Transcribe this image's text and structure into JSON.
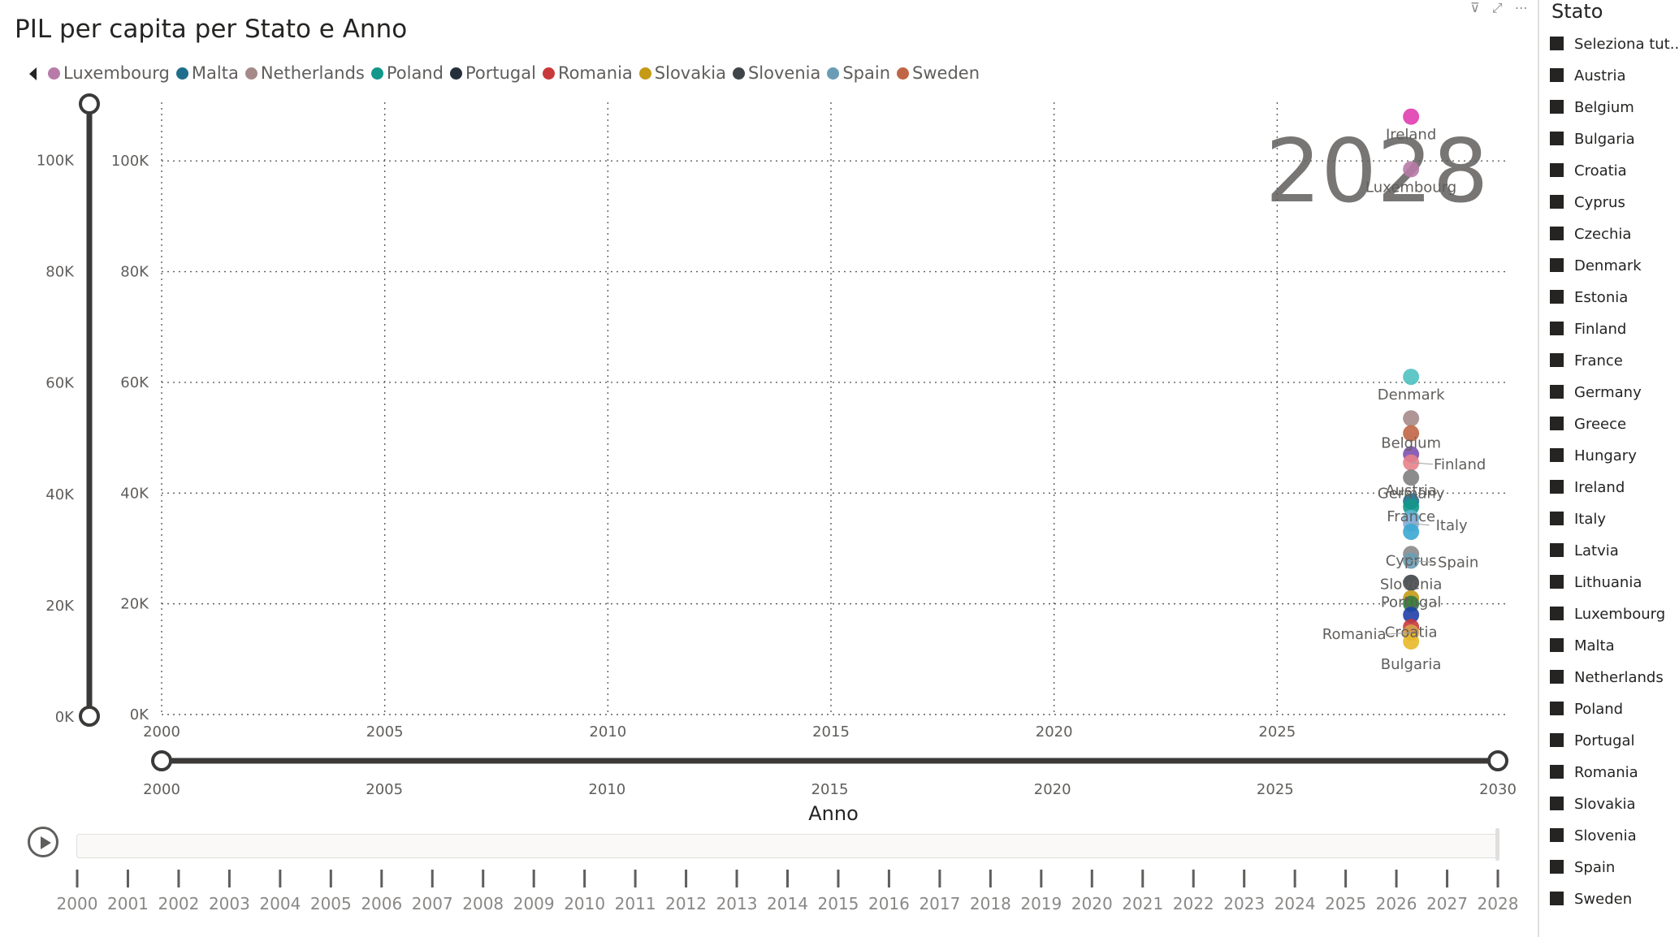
{
  "title": "PIL per capita per Stato e Anno",
  "header_icons": [
    "filter-icon",
    "focus-mode-icon",
    "more-options-icon"
  ],
  "legend": {
    "items": [
      {
        "label": "Luxembourg",
        "color": "#B87BA8"
      },
      {
        "label": "Malta",
        "color": "#1F6E8C"
      },
      {
        "label": "Netherlands",
        "color": "#A68A8A"
      },
      {
        "label": "Poland",
        "color": "#12978A"
      },
      {
        "label": "Portugal",
        "color": "#252F3A"
      },
      {
        "label": "Romania",
        "color": "#C8393C"
      },
      {
        "label": "Slovakia",
        "color": "#C49A16"
      },
      {
        "label": "Slovenia",
        "color": "#3E4449"
      },
      {
        "label": "Spain",
        "color": "#6A9DB5"
      },
      {
        "label": "Sweden",
        "color": "#C06646"
      }
    ]
  },
  "play_axis": {
    "current_year_label": "2028",
    "years": [
      "2000",
      "2001",
      "2002",
      "2003",
      "2004",
      "2005",
      "2006",
      "2007",
      "2008",
      "2009",
      "2010",
      "2011",
      "2012",
      "2013",
      "2014",
      "2015",
      "2016",
      "2017",
      "2018",
      "2019",
      "2020",
      "2021",
      "2022",
      "2023",
      "2024",
      "2025",
      "2026",
      "2027",
      "2028"
    ]
  },
  "y_range_slider": {
    "ticks": [
      "100K",
      "80K",
      "60K",
      "40K",
      "20K",
      "0K"
    ],
    "min": 0,
    "max": 110000
  },
  "x_range_slider": {
    "ticks": [
      "2000",
      "2005",
      "2010",
      "2015",
      "2020",
      "2025",
      "2030"
    ],
    "min": 2000,
    "max": 2030
  },
  "slicer": {
    "title": "Stato",
    "items": [
      "Seleziona tut...",
      "Austria",
      "Belgium",
      "Bulgaria",
      "Croatia",
      "Cyprus",
      "Czechia",
      "Denmark",
      "Estonia",
      "Finland",
      "France",
      "Germany",
      "Greece",
      "Hungary",
      "Ireland",
      "Italy",
      "Latvia",
      "Lithuania",
      "Luxembourg",
      "Malta",
      "Netherlands",
      "Poland",
      "Portugal",
      "Romania",
      "Slovakia",
      "Slovenia",
      "Spain",
      "Sweden"
    ]
  },
  "chart_data": {
    "type": "scatter",
    "title": "PIL per capita per Stato e Anno",
    "xlabel": "Anno",
    "ylabel": "",
    "xlim": [
      2000,
      2030
    ],
    "ylim": [
      0,
      110000
    ],
    "x_ticks": [
      "2000",
      "2005",
      "2010",
      "2015",
      "2020",
      "2025"
    ],
    "y_ticks": [
      "0K",
      "20K",
      "40K",
      "60K",
      "80K",
      "100K"
    ],
    "grid": true,
    "legend_position": "top-left",
    "points": [
      {
        "label": "Ireland",
        "x": 2028,
        "y": 108000,
        "color": "#E03DAF"
      },
      {
        "label": "Luxembourg",
        "x": 2028,
        "y": 98500,
        "color": "#B87BA8"
      },
      {
        "label": "Denmark",
        "x": 2028,
        "y": 61000,
        "color": "#4FC1C1"
      },
      {
        "label": "",
        "x": 2028,
        "y": 53500,
        "color": "#A68A8A"
      },
      {
        "label": "Belgium",
        "x": 2028,
        "y": 50800,
        "color": "#C06646"
      },
      {
        "label": "",
        "x": 2028,
        "y": 47000,
        "color": "#7D50B0"
      },
      {
        "label": "Finland",
        "x": 2028,
        "y": 45500,
        "color": "#E8828A"
      },
      {
        "label": "Austria",
        "x": 2028,
        "y": 42800,
        "color": "#808080"
      },
      {
        "label": "Germany",
        "x": 2028,
        "y": 38500,
        "color": "#1F6E8C"
      },
      {
        "label": "",
        "x": 2028,
        "y": 37500,
        "color": "#12978A"
      },
      {
        "label": "France",
        "x": 2028,
        "y": 35500,
        "color": "#5FB5D6"
      },
      {
        "label": "Italy",
        "x": 2028,
        "y": 34500,
        "color": "#88B0D8"
      },
      {
        "label": "",
        "x": 2028,
        "y": 33000,
        "color": "#3AA9D2"
      },
      {
        "label": "Cyprus",
        "x": 2028,
        "y": 29000,
        "color": "#8A8A8A"
      },
      {
        "label": "Spain",
        "x": 2028,
        "y": 27800,
        "color": "#6A9DB5"
      },
      {
        "label": "Slovenia",
        "x": 2028,
        "y": 23800,
        "color": "#3E4449"
      },
      {
        "label": "",
        "x": 2028,
        "y": 21000,
        "color": "#C49A16"
      },
      {
        "label": "Portugal",
        "x": 2028,
        "y": 20000,
        "color": "#2F7D3E"
      },
      {
        "label": "",
        "x": 2028,
        "y": 18000,
        "color": "#1F3FA8"
      },
      {
        "label": "Croatia",
        "x": 2028,
        "y": 15800,
        "color": "#C8393C"
      },
      {
        "label": "Romania",
        "x": 2028,
        "y": 14800,
        "color": "#D6A24A"
      },
      {
        "label": "Bulgaria",
        "x": 2028,
        "y": 13200,
        "color": "#E8B828"
      }
    ]
  }
}
